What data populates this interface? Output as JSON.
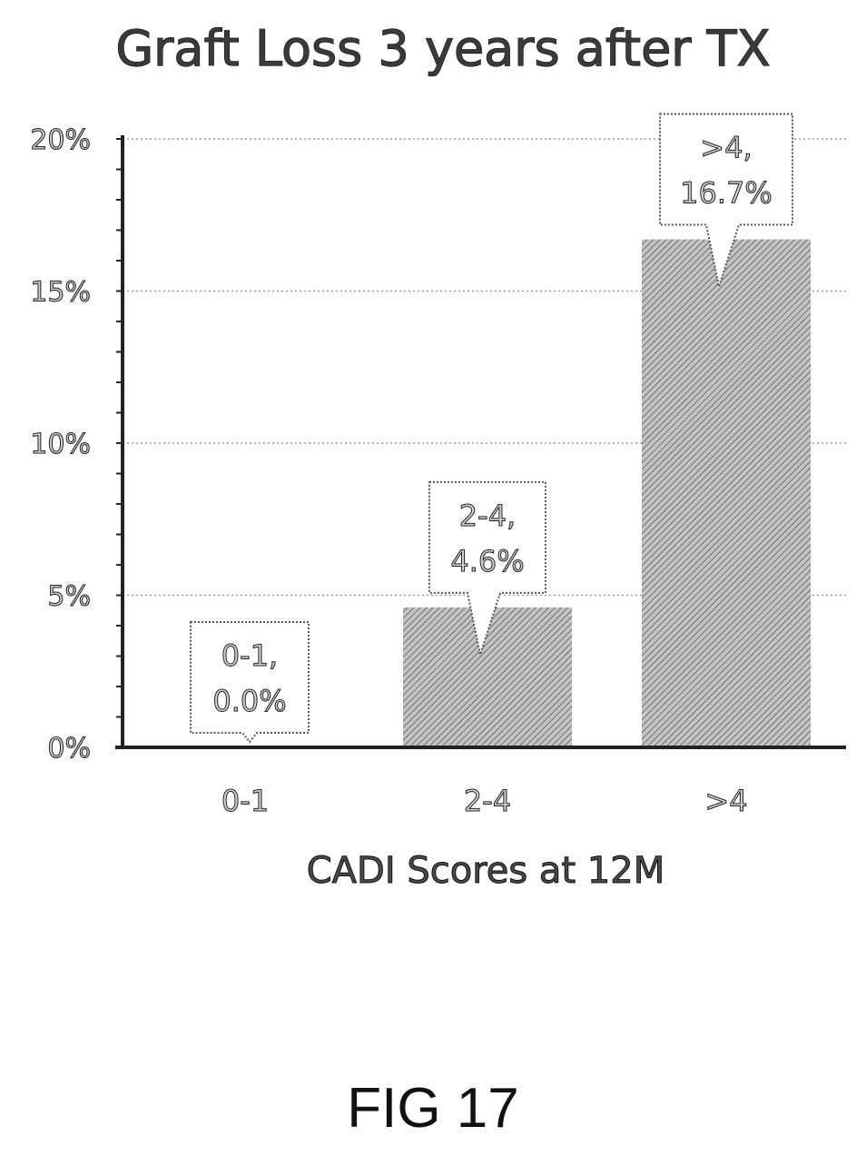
{
  "figure": {
    "caption": "FIG 17"
  },
  "chart_data": {
    "type": "bar",
    "title": "Graft Loss 3 years after TX",
    "xlabel": "CADI Scores at 12M",
    "ylabel": "",
    "categories": [
      "0-1",
      "2-4",
      ">4"
    ],
    "values": [
      0.0,
      4.6,
      16.7
    ],
    "ylim": [
      0,
      20
    ],
    "yticks": [
      {
        "value": 0,
        "label": "0%"
      },
      {
        "value": 5,
        "label": "5%"
      },
      {
        "value": 10,
        "label": "10%"
      },
      {
        "value": 15,
        "label": "15%"
      },
      {
        "value": 20,
        "label": "20%"
      }
    ],
    "data_labels": [
      {
        "line1": "0-1,",
        "line2": "0.0%"
      },
      {
        "line1": "2-4,",
        "line2": "4.6%"
      },
      {
        "line1": ">4,",
        "line2": "16.7%"
      }
    ],
    "grid": "horizontal dotted",
    "legend": "none",
    "bar_fill": "hatched grey",
    "colors": {
      "bar": "#b8b8b8",
      "bar_hatch": "#6e6e6e",
      "axis": "#222222",
      "grid": "#9a9a9a"
    }
  }
}
